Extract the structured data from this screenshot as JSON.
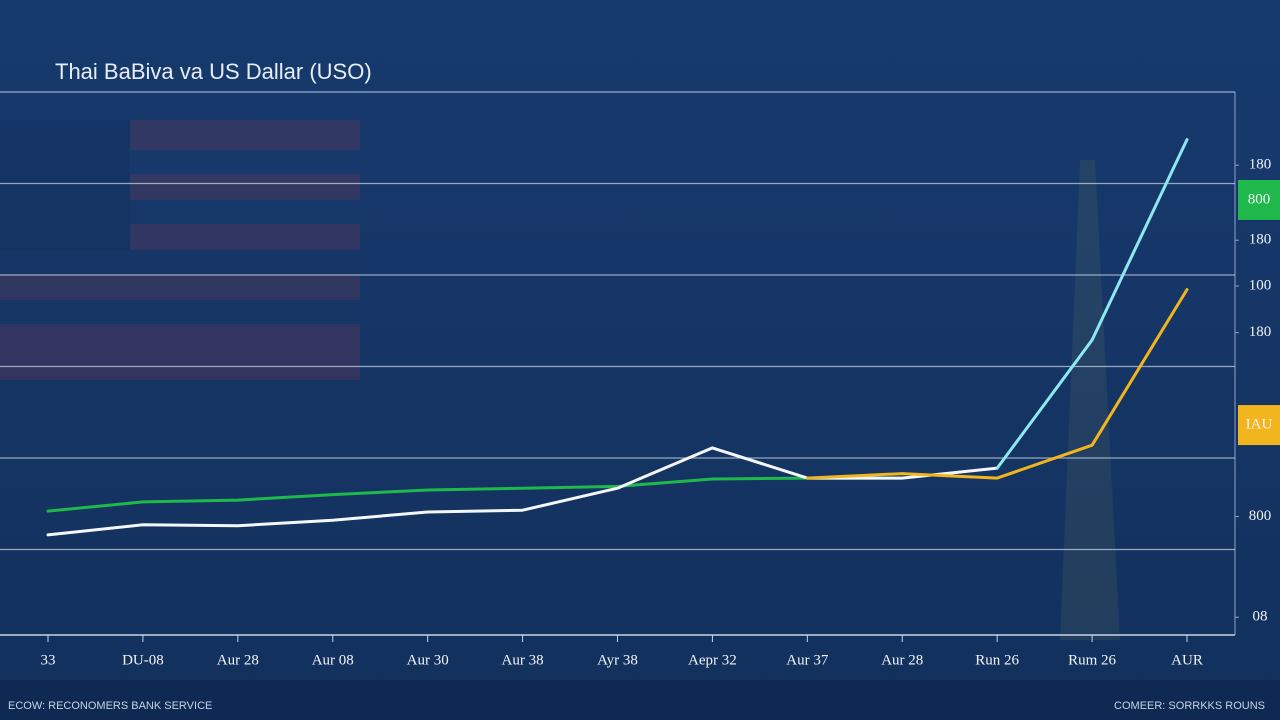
{
  "chart_data": {
    "type": "line",
    "title": "Thai BaBiva va US Dallar (USO)",
    "categories": [
      "33",
      "DU-08",
      "Aur 28",
      "Aur 08",
      "Aur 30",
      "Aur 38",
      "Ayr 38",
      "Aepr 32",
      "Aur 37",
      "Aur 28",
      "Run 26",
      "Rum 26",
      "AUR"
    ],
    "series": [
      {
        "name": "green",
        "color": "#1fb84a",
        "values": [
          1.42,
          1.52,
          1.54,
          1.6,
          1.65,
          1.67,
          1.69,
          1.77,
          1.78,
          1.78,
          null,
          null,
          null
        ]
      },
      {
        "name": "white",
        "color": "#f4f6fa",
        "values": [
          1.16,
          1.27,
          1.26,
          1.32,
          1.41,
          1.43,
          1.67,
          2.11,
          1.78,
          1.78,
          1.89,
          null,
          null
        ]
      },
      {
        "name": "cyan",
        "color": "#8ee8f0",
        "values": [
          null,
          null,
          null,
          null,
          null,
          null,
          null,
          null,
          null,
          null,
          1.89,
          3.29,
          5.48
        ]
      },
      {
        "name": "yellow",
        "color": "#f3b51d",
        "values": [
          null,
          null,
          null,
          null,
          null,
          null,
          null,
          null,
          1.78,
          1.83,
          1.78,
          2.14,
          3.84
        ]
      }
    ],
    "ylim": [
      0,
      6
    ],
    "yticks": [
      1,
      2,
      3,
      4,
      5,
      6
    ],
    "grid": true,
    "right_labels": [
      {
        "value": 5.2,
        "label": "180"
      },
      {
        "value": 4.38,
        "label": "180"
      },
      {
        "value": 3.88,
        "label": "100"
      },
      {
        "value": 3.37,
        "label": "180"
      },
      {
        "value": 1.36,
        "label": "800"
      },
      {
        "value": 0.26,
        "label": "08"
      }
    ],
    "badges": [
      {
        "value": 4.82,
        "label": "800",
        "color": "#1fb84a"
      },
      {
        "value": 2.36,
        "label": "IAU",
        "color": "#f3b51d"
      }
    ],
    "footer_left": "ECOW: RECONOMERS BANK SERVICE",
    "footer_right": "COMEER: SORRKKS ROUNS"
  }
}
